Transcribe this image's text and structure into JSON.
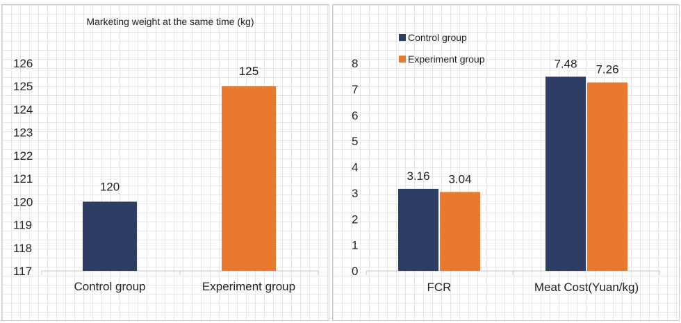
{
  "chart_data": [
    {
      "type": "bar",
      "title": "Marketing weight at the same time (kg)",
      "categories": [
        "Control group",
        "Experiment group"
      ],
      "values": [
        120,
        125
      ],
      "data_labels": [
        "120",
        "125"
      ],
      "colors": [
        "#2e3d63",
        "#e8792f"
      ],
      "ylim": [
        117,
        126
      ],
      "yticks": [
        "117",
        "118",
        "119",
        "120",
        "121",
        "122",
        "123",
        "124",
        "125",
        "126"
      ],
      "grid": true,
      "legend": "none"
    },
    {
      "type": "bar",
      "categories": [
        "FCR",
        "Meat Cost(Yuan/kg)"
      ],
      "series": [
        {
          "name": "Control group",
          "values": [
            3.16,
            7.48
          ],
          "labels": [
            "3.16",
            "7.48"
          ],
          "color": "#2e3d63"
        },
        {
          "name": "Experiment group",
          "values": [
            3.04,
            7.26
          ],
          "labels": [
            "3.04",
            "7.26"
          ],
          "color": "#e8792f"
        }
      ],
      "ylim": [
        0,
        8
      ],
      "yticks": [
        "0",
        "1",
        "2",
        "3",
        "4",
        "5",
        "6",
        "7",
        "8"
      ],
      "grid": true,
      "legend": "top-left"
    }
  ]
}
